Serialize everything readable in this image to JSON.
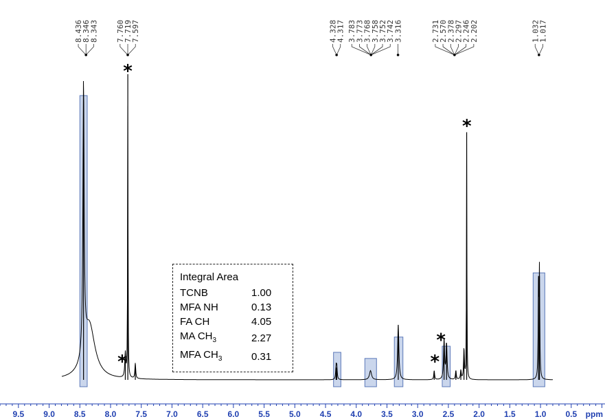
{
  "chart_data": {
    "type": "line",
    "xlabel": "ppm",
    "xlim": [
      9.8,
      -0.05
    ],
    "x_reversed": true,
    "x_ticks": [
      "9.5",
      "9.0",
      "8.5",
      "8.0",
      "7.5",
      "7.0",
      "6.5",
      "6.0",
      "5.5",
      "5.0",
      "4.5",
      "4.0",
      "3.5",
      "3.0",
      "2.5",
      "2.0",
      "1.5",
      "1.0",
      "0.5"
    ],
    "x_tick_values": [
      9.5,
      9.0,
      8.5,
      8.0,
      7.5,
      7.0,
      6.5,
      6.0,
      5.5,
      5.0,
      4.5,
      4.0,
      3.5,
      3.0,
      2.5,
      2.0,
      1.5,
      1.0,
      0.5
    ],
    "y_relative_max": 100,
    "peak_labels": [
      {
        "group": "a",
        "labels": [
          "8.436",
          "8.346",
          "8.343"
        ],
        "converge_ppm": 8.4
      },
      {
        "group": "b",
        "labels": [
          "7.760",
          "7.719",
          "7.597"
        ],
        "converge_ppm": 7.72
      },
      {
        "group": "c",
        "labels": [
          "4.328",
          "4.317"
        ],
        "converge_ppm": 4.32
      },
      {
        "group": "d",
        "labels": [
          "3.783",
          "3.773",
          "3.768",
          "3.758",
          "3.752",
          "3.742"
        ],
        "converge_ppm": 3.76
      },
      {
        "group": "e",
        "labels": [
          "3.316"
        ],
        "converge_ppm": 3.32
      },
      {
        "group": "f",
        "labels": [
          "2.731",
          "2.570",
          "2.378",
          "2.297",
          "2.246",
          "2.202"
        ],
        "converge_ppm": 2.4
      },
      {
        "group": "g",
        "labels": [
          "1.032",
          "1.017"
        ],
        "converge_ppm": 1.025
      }
    ],
    "peaks": [
      {
        "ppm": 8.44,
        "height": 89,
        "width": 0.012
      },
      {
        "ppm": 8.346,
        "height": 18,
        "width": 0.11
      },
      {
        "ppm": 7.76,
        "height": 8,
        "width": 0.01
      },
      {
        "ppm": 7.719,
        "height": 100,
        "width": 0.004
      },
      {
        "ppm": 7.597,
        "height": 5,
        "width": 0.008
      },
      {
        "ppm": 4.328,
        "height": 4,
        "width": 0.008
      },
      {
        "ppm": 4.317,
        "height": 4,
        "width": 0.008
      },
      {
        "ppm": 3.768,
        "height": 3,
        "width": 0.02
      },
      {
        "ppm": 3.316,
        "height": 18,
        "width": 0.012
      },
      {
        "ppm": 2.731,
        "height": 3,
        "width": 0.008
      },
      {
        "ppm": 2.57,
        "height": 13,
        "width": 0.01
      },
      {
        "ppm": 2.53,
        "height": 12,
        "width": 0.01
      },
      {
        "ppm": 2.378,
        "height": 3,
        "width": 0.008
      },
      {
        "ppm": 2.297,
        "height": 3,
        "width": 0.008
      },
      {
        "ppm": 2.246,
        "height": 10,
        "width": 0.008
      },
      {
        "ppm": 2.202,
        "height": 81,
        "width": 0.004
      },
      {
        "ppm": 1.032,
        "height": 34,
        "width": 0.006
      },
      {
        "ppm": 1.017,
        "height": 34,
        "width": 0.006
      }
    ],
    "highlight_boxes": [
      {
        "from_ppm": 8.5,
        "to_ppm": 8.38,
        "height": 93
      },
      {
        "from_ppm": 4.37,
        "to_ppm": 4.25,
        "height": 9
      },
      {
        "from_ppm": 3.86,
        "to_ppm": 3.67,
        "height": 7
      },
      {
        "from_ppm": 3.38,
        "to_ppm": 3.24,
        "height": 14
      },
      {
        "from_ppm": 2.6,
        "to_ppm": 2.47,
        "height": 11
      },
      {
        "from_ppm": 1.12,
        "to_ppm": 0.93,
        "height": 35
      }
    ],
    "impurity_markers": [
      {
        "ppm": 7.72,
        "height": 100
      },
      {
        "ppm": 7.81,
        "height": 5
      },
      {
        "ppm": 2.72,
        "height": 5
      },
      {
        "ppm": 2.62,
        "height": 12
      },
      {
        "ppm": 2.2,
        "height": 82
      }
    ],
    "marker_symbol": "*"
  },
  "integral_table": {
    "title": "Integral Area",
    "rows": [
      {
        "name": "TCNB",
        "sub": "",
        "value": "1.00"
      },
      {
        "name": "MFA NH",
        "sub": "",
        "value": "0.13"
      },
      {
        "name": "FA CH",
        "sub": "",
        "value": "4.05"
      },
      {
        "name": "MA CH",
        "sub": "3",
        "value": "2.27"
      },
      {
        "name": "MFA CH",
        "sub": "3",
        "value": "0.31"
      }
    ]
  },
  "colors": {
    "highlight_fill": "#b8c8e6",
    "highlight_stroke": "#5a78b8",
    "axis": "#1f3fb0",
    "trace": "#000000"
  }
}
